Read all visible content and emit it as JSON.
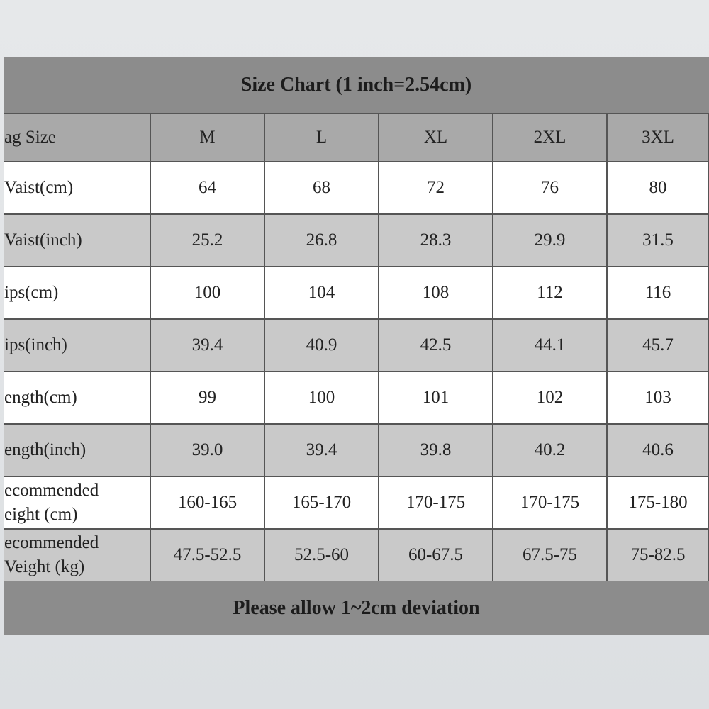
{
  "header": {
    "title": "Size Chart (1 inch=2.54cm)"
  },
  "table": {
    "columns": [
      "ag Size",
      "M",
      "L",
      "XL",
      "2XL",
      "3XL"
    ],
    "rows": [
      {
        "label": [
          "Vaist(cm)"
        ],
        "cells": [
          "64",
          "68",
          "72",
          "76",
          "80"
        ]
      },
      {
        "label": [
          "Vaist(inch)"
        ],
        "cells": [
          "25.2",
          "26.8",
          "28.3",
          "29.9",
          "31.5"
        ]
      },
      {
        "label": [
          "ips(cm)"
        ],
        "cells": [
          "100",
          "104",
          "108",
          "112",
          "116"
        ]
      },
      {
        "label": [
          "ips(inch)"
        ],
        "cells": [
          "39.4",
          "40.9",
          "42.5",
          "44.1",
          "45.7"
        ]
      },
      {
        "label": [
          "ength(cm)"
        ],
        "cells": [
          "99",
          "100",
          "101",
          "102",
          "103"
        ]
      },
      {
        "label": [
          "ength(inch)"
        ],
        "cells": [
          "39.0",
          "39.4",
          "39.8",
          "40.2",
          "40.6"
        ]
      },
      {
        "label": [
          "ecommended",
          "eight (cm)"
        ],
        "cells": [
          "160-165",
          "165-170",
          "170-175",
          "170-175",
          "175-180"
        ]
      },
      {
        "label": [
          "ecommended",
          "Veight (kg)"
        ],
        "cells": [
          "47.5-52.5",
          "52.5-60",
          "60-67.5",
          "67.5-75",
          "75-82.5"
        ]
      }
    ]
  },
  "footer": {
    "note": "Please allow 1~2cm deviation"
  }
}
